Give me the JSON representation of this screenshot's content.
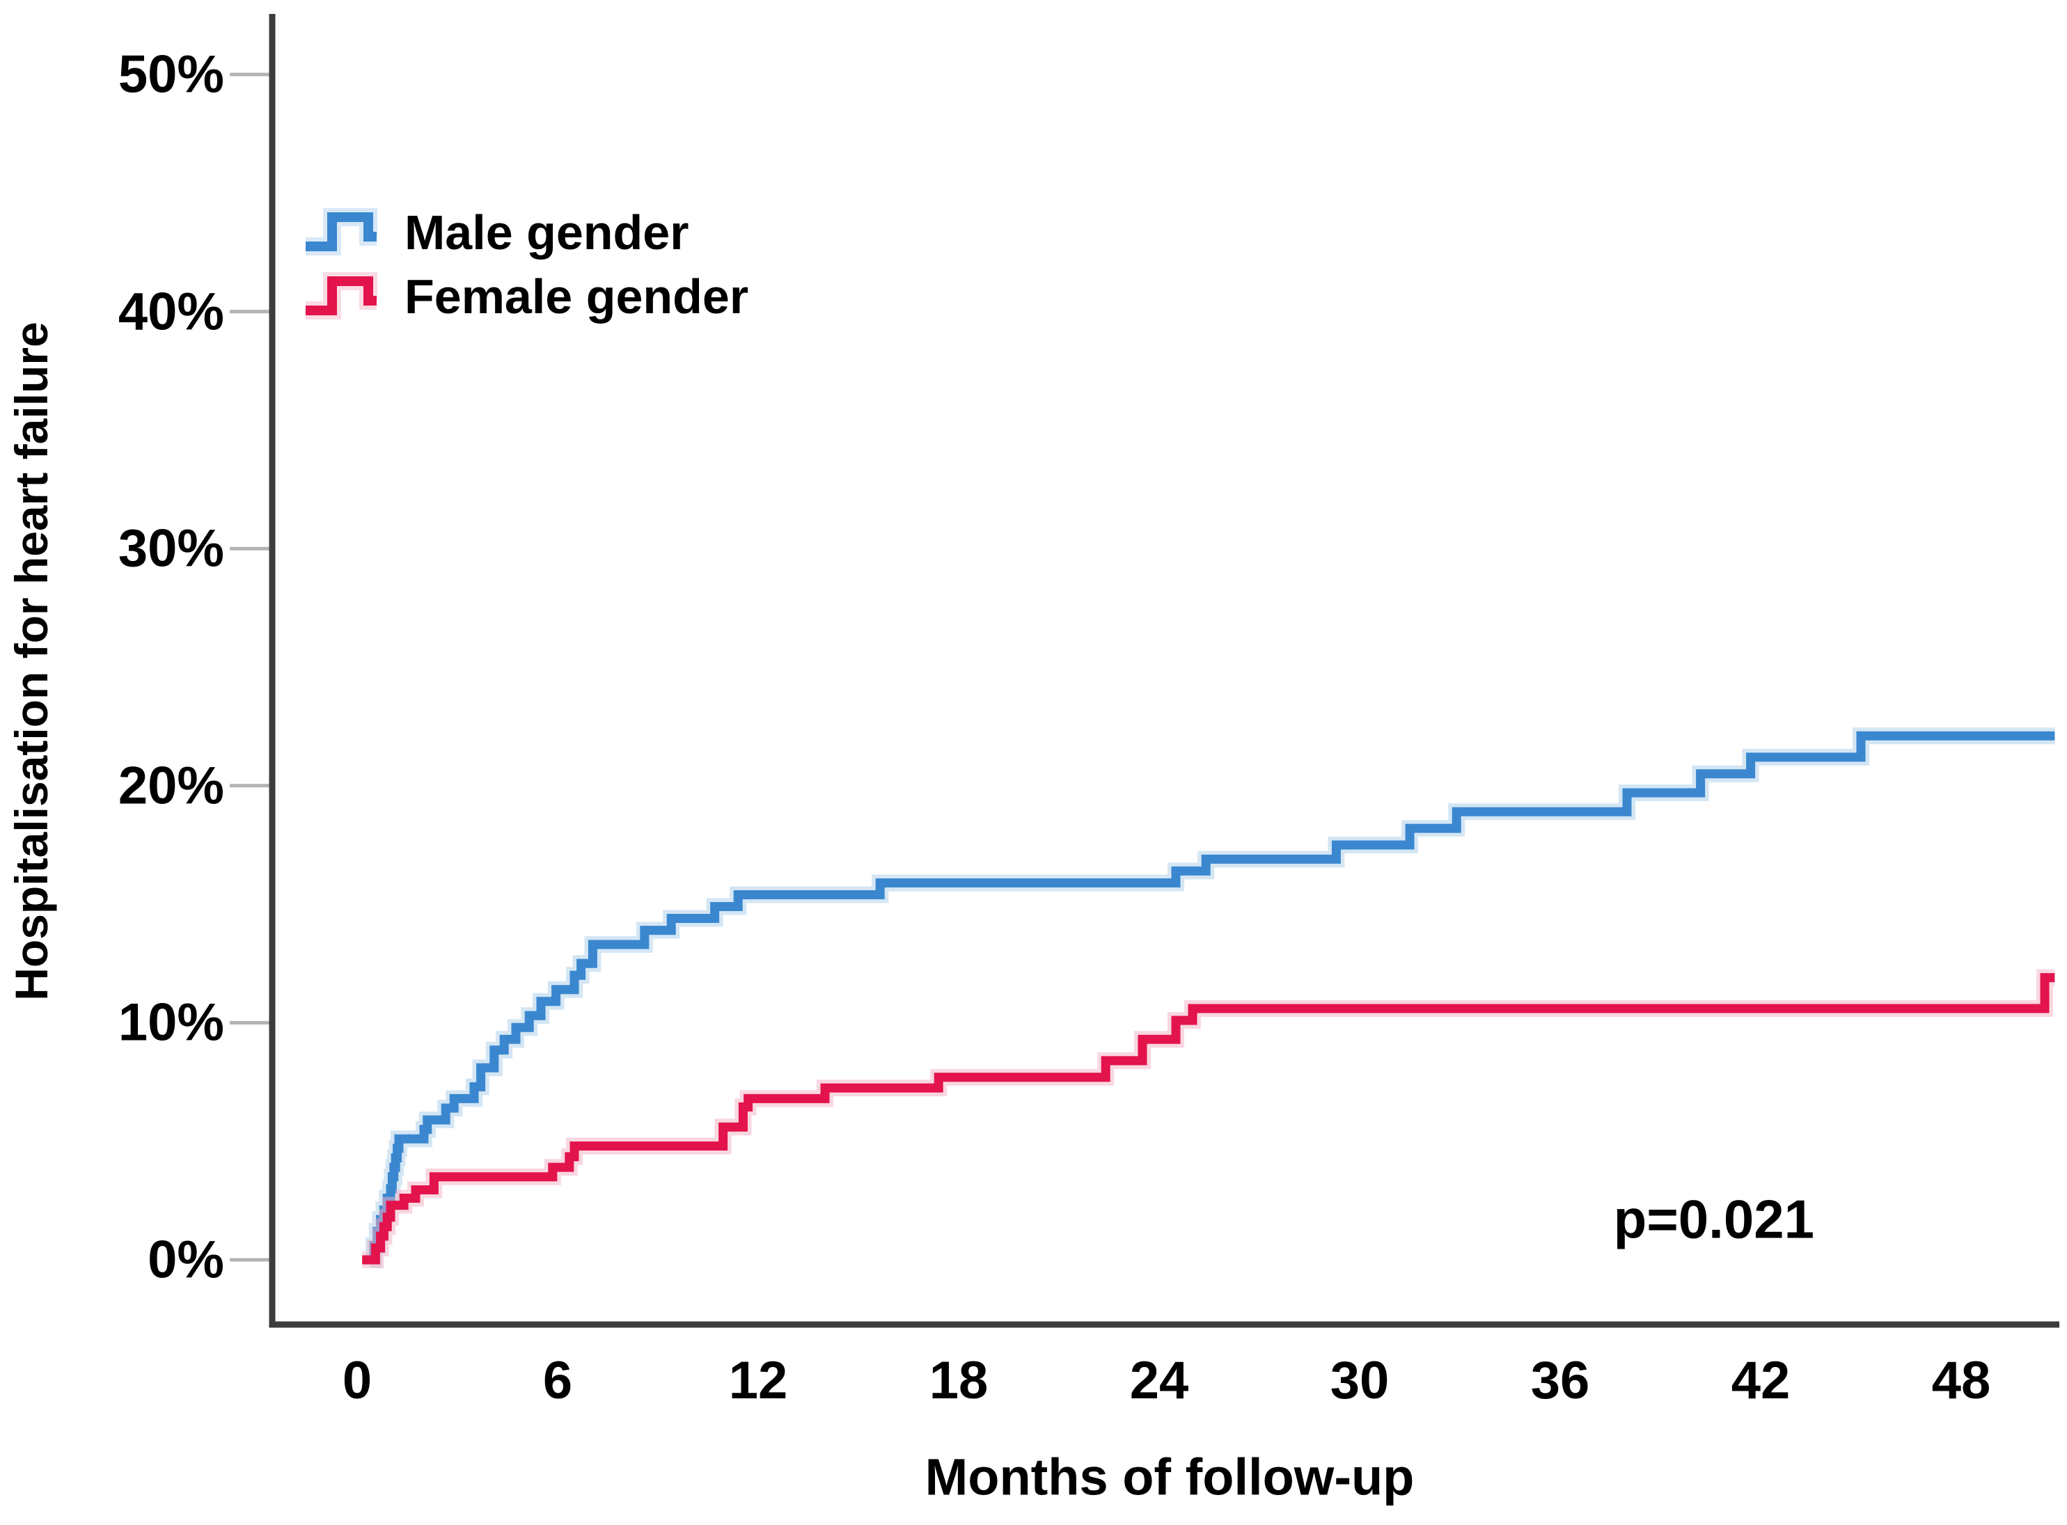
{
  "figure": {
    "background": "#ffffff",
    "axis_color": "#3d3d3d",
    "tick_mark_color": "#b3b3b3"
  },
  "chart_data": {
    "type": "line",
    "subtype": "kaplan-meier-cumulative-incidence-step-curves",
    "title": "",
    "xlabel": "Months of follow-up",
    "ylabel": "Hospitalisation for heart failure",
    "x_ticks": [
      0,
      6,
      12,
      18,
      24,
      30,
      36,
      42,
      48
    ],
    "x_tick_labels": [
      "0",
      "6",
      "12",
      "18",
      "24",
      "30",
      "36",
      "42",
      "48"
    ],
    "y_ticks": [
      0,
      10,
      20,
      30,
      40,
      50
    ],
    "y_tick_labels": [
      "0%",
      "10%",
      "20%",
      "30%",
      "40%",
      "50%"
    ],
    "xlim": [
      0,
      51
    ],
    "ylim": [
      0,
      52
    ],
    "grid": false,
    "legend_position": "upper-left-inside",
    "annotation": {
      "text": "p=0.021",
      "x_month": 40.6,
      "y_pct": 1.7
    },
    "series": [
      {
        "name": "Male gender",
        "color": "#3a87d0",
        "halo": "#aacdea",
        "step_points": [
          [
            0.4,
            0
          ],
          [
            0.5,
            0.6
          ],
          [
            0.6,
            1.2
          ],
          [
            0.7,
            1.7
          ],
          [
            0.8,
            2.1
          ],
          [
            0.9,
            2.6
          ],
          [
            1.0,
            3.0
          ],
          [
            1.05,
            3.5
          ],
          [
            1.1,
            3.9
          ],
          [
            1.15,
            4.3
          ],
          [
            1.2,
            4.7
          ],
          [
            1.25,
            5.1
          ],
          [
            2.0,
            5.5
          ],
          [
            2.1,
            5.9
          ],
          [
            2.65,
            6.4
          ],
          [
            2.9,
            6.8
          ],
          [
            3.5,
            7.3
          ],
          [
            3.7,
            8.1
          ],
          [
            4.1,
            8.85
          ],
          [
            4.4,
            9.3
          ],
          [
            4.75,
            9.8
          ],
          [
            5.15,
            10.3
          ],
          [
            5.5,
            10.9
          ],
          [
            5.95,
            11.4
          ],
          [
            6.5,
            12.0
          ],
          [
            6.7,
            12.5
          ],
          [
            7.05,
            13.3
          ],
          [
            8.6,
            13.9
          ],
          [
            9.4,
            14.4
          ],
          [
            10.7,
            14.9
          ],
          [
            11.4,
            15.4
          ],
          [
            15.65,
            15.9
          ],
          [
            24.5,
            16.4
          ],
          [
            25.4,
            16.9
          ],
          [
            29.3,
            17.5
          ],
          [
            31.5,
            18.2
          ],
          [
            32.9,
            18.9
          ],
          [
            38.0,
            19.7
          ],
          [
            40.2,
            20.5
          ],
          [
            41.7,
            21.2
          ],
          [
            45.0,
            22.1
          ],
          [
            50.8,
            22.1
          ]
        ]
      },
      {
        "name": "Female gender",
        "color": "#e3134c",
        "halo": "#f3afc3",
        "step_points": [
          [
            0.15,
            0
          ],
          [
            0.55,
            0.5
          ],
          [
            0.7,
            1.0
          ],
          [
            0.8,
            1.4
          ],
          [
            0.9,
            1.8
          ],
          [
            1.0,
            2.3
          ],
          [
            1.4,
            2.6
          ],
          [
            1.75,
            2.95
          ],
          [
            2.3,
            3.5
          ],
          [
            5.85,
            3.9
          ],
          [
            6.35,
            4.35
          ],
          [
            6.5,
            4.8
          ],
          [
            10.95,
            5.6
          ],
          [
            11.55,
            6.45
          ],
          [
            11.7,
            6.8
          ],
          [
            14.0,
            7.25
          ],
          [
            17.4,
            7.7
          ],
          [
            22.4,
            8.4
          ],
          [
            23.5,
            9.3
          ],
          [
            24.5,
            10.1
          ],
          [
            25.0,
            10.6
          ],
          [
            50.5,
            11.9
          ],
          [
            50.8,
            11.9
          ]
        ]
      }
    ]
  }
}
